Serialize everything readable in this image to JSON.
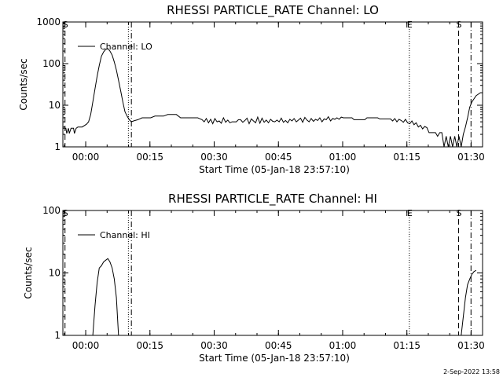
{
  "timestamp": "2-Sep-2022 13:58",
  "chart_data": [
    {
      "type": "line",
      "title": "RHESSI PARTICLE_RATE Channel: LO",
      "xlabel": "Start Time (05-Jan-18 23:57:10)",
      "ylabel": "Counts/sec",
      "yscale": "log",
      "ylim": [
        1,
        1000
      ],
      "xlim": [
        -2.5,
        95.5
      ],
      "x_unit": "minutes after 23:57:10",
      "y_ticks": [
        {
          "v": 1,
          "label": "1"
        },
        {
          "v": 10,
          "label": "10"
        },
        {
          "v": 100,
          "label": "100"
        },
        {
          "v": 1000,
          "label": "1000"
        }
      ],
      "x_ticks": [
        {
          "v": 2.83,
          "label": "00:00"
        },
        {
          "v": 17.83,
          "label": "00:15"
        },
        {
          "v": 32.83,
          "label": "00:30"
        },
        {
          "v": 47.83,
          "label": "00:45"
        },
        {
          "v": 62.83,
          "label": "01:00"
        },
        {
          "v": 77.83,
          "label": "01:15"
        },
        {
          "v": 92.83,
          "label": "01:30"
        }
      ],
      "markers": [
        {
          "x": -2.0,
          "label": "S",
          "style": "dashed"
        },
        {
          "x": 12.8,
          "label": "",
          "style": "dotted"
        },
        {
          "x": 13.5,
          "label": "",
          "style": "dashdot"
        },
        {
          "x": 78.4,
          "label": "E",
          "style": "dotted"
        },
        {
          "x": 89.9,
          "label": "S",
          "style": "dashed"
        },
        {
          "x": 92.8,
          "label": "",
          "style": "dashdot"
        }
      ],
      "legend": {
        "label": "Channel: LO",
        "position": "top-left"
      },
      "series": [
        {
          "name": "Channel: LO",
          "points": [
            [
              -2.4,
              2.8
            ],
            [
              -1.8,
              2.8
            ],
            [
              -1.6,
              2.1
            ],
            [
              -1.2,
              2.8
            ],
            [
              -1.0,
              2.1
            ],
            [
              -0.6,
              2.8
            ],
            [
              0.0,
              2.8
            ],
            [
              0.2,
              2.1
            ],
            [
              0.6,
              2.8
            ],
            [
              1.0,
              3.0
            ],
            [
              2.0,
              3.0
            ],
            [
              3.0,
              3.5
            ],
            [
              3.5,
              4.0
            ],
            [
              4.0,
              6
            ],
            [
              4.5,
              12
            ],
            [
              5.0,
              25
            ],
            [
              5.5,
              50
            ],
            [
              6.0,
              90
            ],
            [
              6.5,
              150
            ],
            [
              7.0,
              190
            ],
            [
              7.5,
              220
            ],
            [
              8.0,
              230
            ],
            [
              8.5,
              200
            ],
            [
              9.0,
              160
            ],
            [
              9.5,
              110
            ],
            [
              10.0,
              70
            ],
            [
              10.5,
              40
            ],
            [
              11.0,
              22
            ],
            [
              11.5,
              12
            ],
            [
              12.0,
              7
            ],
            [
              12.5,
              5.5
            ],
            [
              13.0,
              4.5
            ],
            [
              13.5,
              4.0
            ],
            [
              14.0,
              4.2
            ],
            [
              15.0,
              4.5
            ],
            [
              16.0,
              5.0
            ],
            [
              18.0,
              5.0
            ],
            [
              19.0,
              5.5
            ],
            [
              21.0,
              5.5
            ],
            [
              22.0,
              6.0
            ],
            [
              24.0,
              6.0
            ],
            [
              25.0,
              5.0
            ],
            [
              29.0,
              5.0
            ],
            [
              30.0,
              4.5
            ],
            [
              30.5,
              4.0
            ],
            [
              31.0,
              4.8
            ],
            [
              31.5,
              3.8
            ],
            [
              32.0,
              4.6
            ],
            [
              32.5,
              3.6
            ],
            [
              33.0,
              4.8
            ],
            [
              33.5,
              4.0
            ],
            [
              34.0,
              4.2
            ],
            [
              34.5,
              3.7
            ],
            [
              35.0,
              5.0
            ],
            [
              35.5,
              3.9
            ],
            [
              36.0,
              4.4
            ],
            [
              36.5,
              3.8
            ],
            [
              37.0,
              4.0
            ],
            [
              38.0,
              4.0
            ],
            [
              38.5,
              4.5
            ],
            [
              39.0,
              4.5
            ],
            [
              39.5,
              3.9
            ],
            [
              40.0,
              4.3
            ],
            [
              40.5,
              4.9
            ],
            [
              41.0,
              3.6
            ],
            [
              41.5,
              4.7
            ],
            [
              42.0,
              4.2
            ],
            [
              42.5,
              3.8
            ],
            [
              43.0,
              5.2
            ],
            [
              43.5,
              3.7
            ],
            [
              44.0,
              4.9
            ],
            [
              44.5,
              3.9
            ],
            [
              45.0,
              4.4
            ],
            [
              45.5,
              3.8
            ],
            [
              46.0,
              4.6
            ],
            [
              46.5,
              4.1
            ],
            [
              47.0,
              4.0
            ],
            [
              47.5,
              4.4
            ],
            [
              48.0,
              4.0
            ],
            [
              48.5,
              4.9
            ],
            [
              49.0,
              3.9
            ],
            [
              49.5,
              4.3
            ],
            [
              50.0,
              3.8
            ],
            [
              50.5,
              4.6
            ],
            [
              51.0,
              4.2
            ],
            [
              51.5,
              4.8
            ],
            [
              52.0,
              4.0
            ],
            [
              52.5,
              4.4
            ],
            [
              53.0,
              4.9
            ],
            [
              53.5,
              3.9
            ],
            [
              54.0,
              5.1
            ],
            [
              54.5,
              4.4
            ],
            [
              55.0,
              4.0
            ],
            [
              55.5,
              4.8
            ],
            [
              56.0,
              4.1
            ],
            [
              56.5,
              4.6
            ],
            [
              57.0,
              4.3
            ],
            [
              57.5,
              5.0
            ],
            [
              58.0,
              4.0
            ],
            [
              58.5,
              4.7
            ],
            [
              59.0,
              4.5
            ],
            [
              59.5,
              5.3
            ],
            [
              60.0,
              4.2
            ],
            [
              60.5,
              4.8
            ],
            [
              61.0,
              4.6
            ],
            [
              61.5,
              5.0
            ],
            [
              62.0,
              4.6
            ],
            [
              62.5,
              5.2
            ],
            [
              63.0,
              5.0
            ],
            [
              64.0,
              5.0
            ],
            [
              65.0,
              5.0
            ],
            [
              65.5,
              4.5
            ],
            [
              68.0,
              4.5
            ],
            [
              68.5,
              5.0
            ],
            [
              71.0,
              5.0
            ],
            [
              71.5,
              4.7
            ],
            [
              74.0,
              4.7
            ],
            [
              74.5,
              4.2
            ],
            [
              75.0,
              4.8
            ],
            [
              75.5,
              4.0
            ],
            [
              76.0,
              4.6
            ],
            [
              76.5,
              4.3
            ],
            [
              77.0,
              3.9
            ],
            [
              77.5,
              4.6
            ],
            [
              78.0,
              3.8
            ],
            [
              78.5,
              3.6
            ],
            [
              79.0,
              4.2
            ],
            [
              79.5,
              3.4
            ],
            [
              80.0,
              3.8
            ],
            [
              80.5,
              3.0
            ],
            [
              81.0,
              3.3
            ],
            [
              81.5,
              2.7
            ],
            [
              82.0,
              3.1
            ],
            [
              82.5,
              2.9
            ],
            [
              83.0,
              2.2
            ],
            [
              84.5,
              2.2
            ],
            [
              85.0,
              1.8
            ],
            [
              85.5,
              2.2
            ],
            [
              86.0,
              2.2
            ],
            [
              86.5,
              1.0
            ],
            [
              87.0,
              1.8
            ],
            [
              87.5,
              1.0
            ],
            [
              88.0,
              1.8
            ],
            [
              88.5,
              1.0
            ],
            [
              89.0,
              1.8
            ],
            [
              89.5,
              1.0
            ],
            [
              90.0,
              1.8
            ],
            [
              90.5,
              1.0
            ],
            [
              91.0,
              2.0
            ],
            [
              91.5,
              3.0
            ],
            [
              92.0,
              5.0
            ],
            [
              92.5,
              9.0
            ],
            [
              93.0,
              12.0
            ],
            [
              94.0,
              17.0
            ],
            [
              95.0,
              20.0
            ]
          ]
        }
      ]
    },
    {
      "type": "line",
      "title": "RHESSI PARTICLE_RATE Channel: HI",
      "xlabel": "Start Time (05-Jan-18 23:57:10)",
      "ylabel": "Counts/sec",
      "yscale": "log",
      "ylim": [
        1,
        100
      ],
      "xlim": [
        -2.5,
        95.5
      ],
      "x_unit": "minutes after 23:57:10",
      "y_ticks": [
        {
          "v": 1,
          "label": "1"
        },
        {
          "v": 10,
          "label": "10"
        },
        {
          "v": 100,
          "label": "100"
        }
      ],
      "x_ticks": [
        {
          "v": 2.83,
          "label": "00:00"
        },
        {
          "v": 17.83,
          "label": "00:15"
        },
        {
          "v": 32.83,
          "label": "00:30"
        },
        {
          "v": 47.83,
          "label": "00:45"
        },
        {
          "v": 62.83,
          "label": "01:00"
        },
        {
          "v": 77.83,
          "label": "01:15"
        },
        {
          "v": 92.83,
          "label": "01:30"
        }
      ],
      "markers": [
        {
          "x": -2.0,
          "label": "S",
          "style": "dashed"
        },
        {
          "x": 12.8,
          "label": "",
          "style": "dotted"
        },
        {
          "x": 13.5,
          "label": "",
          "style": "dashdot"
        },
        {
          "x": 78.4,
          "label": "E",
          "style": "dotted"
        },
        {
          "x": 89.9,
          "label": "S",
          "style": "dashed"
        },
        {
          "x": 92.8,
          "label": "",
          "style": "dashdot"
        }
      ],
      "legend": {
        "label": "Channel: HI",
        "position": "top-left"
      },
      "series": [
        {
          "name": "Channel: HI",
          "segments": [
            [
              [
                4.5,
                1.0
              ],
              [
                5.0,
                3.0
              ],
              [
                5.5,
                7.0
              ],
              [
                6.0,
                12.0
              ],
              [
                6.5,
                13.0
              ],
              [
                7.0,
                15.0
              ],
              [
                7.5,
                16.0
              ],
              [
                8.0,
                17.0
              ],
              [
                8.5,
                15.0
              ],
              [
                9.0,
                12.0
              ],
              [
                9.5,
                8.0
              ],
              [
                10.0,
                4.0
              ],
              [
                10.5,
                1.0
              ]
            ],
            [
              [
                90.5,
                1.0
              ],
              [
                91.0,
                2.0
              ],
              [
                91.5,
                4.0
              ],
              [
                92.0,
                6.5
              ],
              [
                92.5,
                8.0
              ],
              [
                93.0,
                9.5
              ],
              [
                93.5,
                10.5
              ],
              [
                94.0,
                11.0
              ]
            ]
          ]
        }
      ]
    }
  ]
}
